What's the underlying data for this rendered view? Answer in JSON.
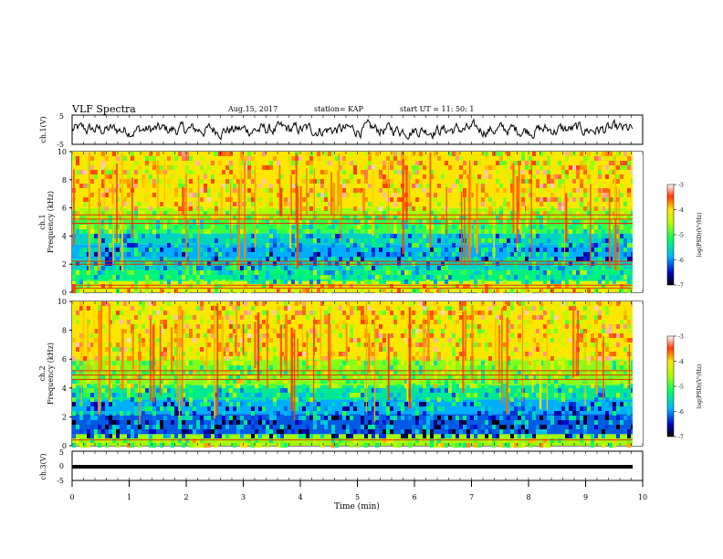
{
  "header": {
    "title": "VLF Spectra",
    "date": "Aug.15, 2017",
    "station": "station= KAP",
    "start_time": "start  UT =   11: 50: 1"
  },
  "chart_data": [
    {
      "type": "line",
      "panel": "ch1-waveform",
      "ylabel": "ch.1(V)",
      "ylim": [
        -5,
        5
      ],
      "yticks": [
        "5",
        "-5"
      ],
      "xlim": [
        0,
        10
      ],
      "description_values": "noisy waveform with amplitude roughly -3 to +3 V"
    },
    {
      "type": "heatmap",
      "panel": "ch1-spectrogram",
      "ylabel": "ch.1\nFrequency  (kHz)",
      "ylim": [
        0,
        10
      ],
      "yticks": [
        "0",
        "2",
        "4",
        "6",
        "8",
        "10"
      ],
      "xlim": [
        0,
        10
      ],
      "colorbar": {
        "label": "log(PSD)(V²/Hz)",
        "ticks": [
          "-3",
          "-4",
          "-5",
          "-6",
          "-7"
        ],
        "range": [
          -7,
          -3
        ]
      },
      "bands": [
        {
          "from": 0.0,
          "to": 0.8,
          "level": -4.2
        },
        {
          "from": 0.8,
          "to": 1.6,
          "level": -5.3
        },
        {
          "from": 1.6,
          "to": 2.4,
          "level": -5.6
        },
        {
          "from": 2.4,
          "to": 3.4,
          "level": -5.9
        },
        {
          "from": 3.4,
          "to": 4.2,
          "level": -5.6
        },
        {
          "from": 4.2,
          "to": 5.2,
          "level": -5.0
        },
        {
          "from": 5.2,
          "to": 6.0,
          "level": -4.6
        },
        {
          "from": 6.0,
          "to": 10.0,
          "level": -4.0
        }
      ],
      "lines_khz": [
        0.3,
        0.5,
        2.0,
        2.2,
        4.9,
        5.2,
        5.5
      ]
    },
    {
      "type": "heatmap",
      "panel": "ch2-spectrogram",
      "ylabel": "ch.2\nFrequency  (kHz)",
      "ylim": [
        0,
        10
      ],
      "yticks": [
        "0",
        "2",
        "4",
        "6",
        "8",
        "10"
      ],
      "xlim": [
        0,
        10
      ],
      "colorbar": {
        "label": "log(PSD)(V²/Hz)",
        "ticks": [
          "-3",
          "-4",
          "-5",
          "-6",
          "-7"
        ],
        "range": [
          -7,
          -3
        ]
      },
      "bands": [
        {
          "from": 0.0,
          "to": 0.8,
          "level": -4.6
        },
        {
          "from": 0.8,
          "to": 2.2,
          "level": -6.2
        },
        {
          "from": 2.2,
          "to": 3.2,
          "level": -5.9
        },
        {
          "from": 3.2,
          "to": 4.2,
          "level": -5.4
        },
        {
          "from": 4.2,
          "to": 6.0,
          "level": -4.7
        },
        {
          "from": 6.0,
          "to": 10.0,
          "level": -4.0
        }
      ],
      "lines_khz": [
        0.4,
        4.6,
        4.9,
        5.2
      ]
    },
    {
      "type": "line",
      "panel": "ch3-waveform",
      "ylabel": "ch.3(V)",
      "ylim": [
        -5,
        5
      ],
      "yticks": [
        "5",
        "0",
        "-5"
      ],
      "xlim": [
        0,
        10
      ],
      "xticks": [
        "0",
        "1",
        "2",
        "3",
        "4",
        "5",
        "6",
        "7",
        "8",
        "9",
        "10"
      ],
      "xlabel": "Time  (min)",
      "level": -0.3
    }
  ]
}
